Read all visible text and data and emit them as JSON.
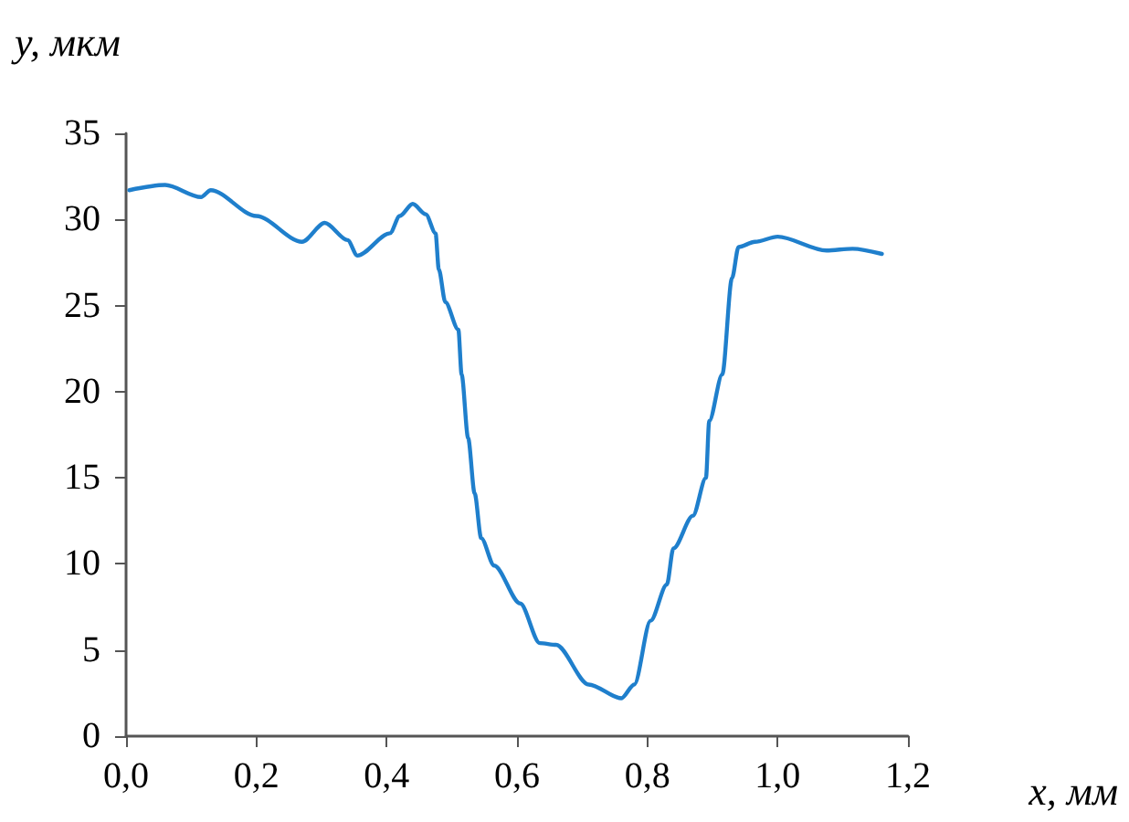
{
  "chart_data": {
    "type": "line",
    "xlabel": "x, мм",
    "ylabel": "y, мкм",
    "series": [
      {
        "color": "#1f7fcc",
        "x": [
          0.005,
          0.06,
          0.115,
          0.13,
          0.2,
          0.27,
          0.305,
          0.34,
          0.355,
          0.405,
          0.42,
          0.44,
          0.46,
          0.475,
          0.48,
          0.49,
          0.51,
          0.515,
          0.525,
          0.535,
          0.545,
          0.565,
          0.605,
          0.635,
          0.66,
          0.71,
          0.76,
          0.78,
          0.805,
          0.83,
          0.84,
          0.87,
          0.89,
          0.895,
          0.915,
          0.93,
          0.94,
          0.965,
          1.0,
          1.075,
          1.115,
          1.16
        ],
        "values": [
          31.7,
          32.0,
          31.3,
          31.7,
          30.2,
          28.7,
          29.8,
          28.8,
          27.9,
          29.2,
          30.2,
          30.9,
          30.3,
          29.2,
          27.1,
          25.2,
          23.6,
          21.0,
          17.3,
          14.1,
          11.5,
          9.9,
          7.7,
          5.4,
          5.3,
          3.0,
          2.2,
          3.0,
          6.7,
          8.8,
          10.9,
          12.8,
          15.0,
          18.3,
          21.0,
          26.6,
          28.4,
          28.7,
          29.0,
          28.2,
          28.3,
          28.0
        ]
      }
    ],
    "xlim": [
      0,
      1.2
    ],
    "xticks": [
      {
        "value": 0,
        "label": "0,0"
      },
      {
        "value": 0.2,
        "label": "0,2"
      },
      {
        "value": 0.4,
        "label": "0,4"
      },
      {
        "value": 0.6,
        "label": "0,6"
      },
      {
        "value": 0.8,
        "label": "0,8"
      },
      {
        "value": 1.0,
        "label": "1,0"
      },
      {
        "value": 1.2,
        "label": "1,2"
      }
    ],
    "ylim": [
      0,
      35
    ],
    "yticks": [
      0,
      5,
      10,
      15,
      20,
      25,
      30,
      35
    ],
    "grid": false,
    "marker": "none",
    "line_style": "solid"
  }
}
